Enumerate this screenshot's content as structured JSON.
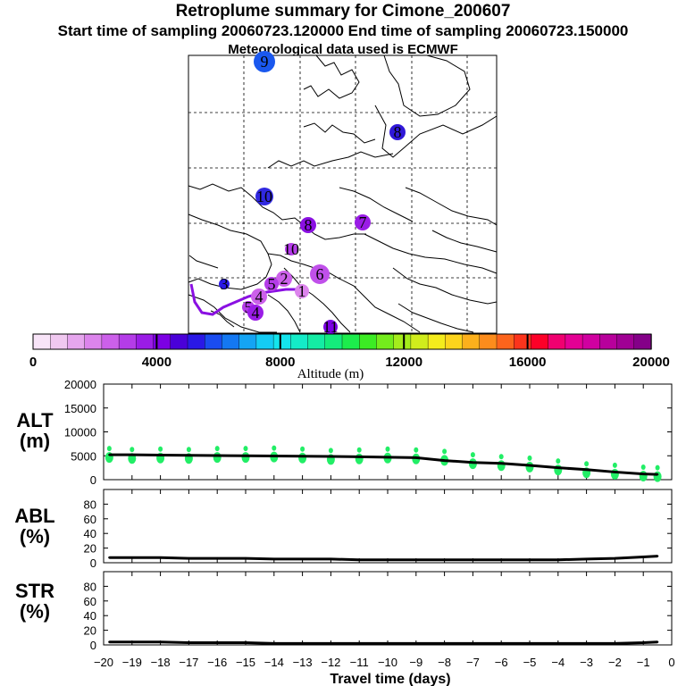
{
  "header": {
    "title": "Retroplume summary for Cimone_200607",
    "sampling": "Start time of sampling 20060723.120000     End time of sampling 20060723.150000",
    "met": "Meteorological data used is ECMWF"
  },
  "colorbar": {
    "label": "Altitude (m)",
    "ticks": [
      "0",
      "4000",
      "8000",
      "12000",
      "16000",
      "20000"
    ],
    "colors": [
      "#f8e4f8",
      "#f0c8f0",
      "#e6a6ee",
      "#dc84ec",
      "#cc60ea",
      "#b43ce8",
      "#9a1ce6",
      "#7c00e4",
      "#4a00d8",
      "#2a18e6",
      "#1a4cf0",
      "#1478f2",
      "#14a4f4",
      "#14ccf4",
      "#14e4ec",
      "#14ecc8",
      "#14eca4",
      "#14ec7c",
      "#1cec4c",
      "#3cec24",
      "#74ec1c",
      "#a4ec1c",
      "#d0ec1c",
      "#f4ec1c",
      "#fcd41c",
      "#fcb01c",
      "#fc8c1c",
      "#fc641c",
      "#fc341c",
      "#fc0028",
      "#f00070",
      "#e40094",
      "#d000a0",
      "#b8009c",
      "#a00094",
      "#840088"
    ]
  },
  "map_markers": [
    {
      "label": "9",
      "color": "#1a58ee"
    },
    {
      "label": "8",
      "color": "#3018d8"
    },
    {
      "label": "10",
      "color": "#3028e0"
    },
    {
      "label": "7",
      "color": "#9a1ce6"
    },
    {
      "label": "8",
      "color": "#8a10e2"
    },
    {
      "label": "10",
      "color": "#b43ce8"
    },
    {
      "label": "6",
      "color": "#c050ea"
    },
    {
      "label": "3",
      "color": "#2a18e6"
    },
    {
      "label": "4",
      "color": "#cc60ea"
    },
    {
      "label": "5",
      "color": "#b43ce8"
    },
    {
      "label": "1",
      "color": "#dc84ec"
    },
    {
      "label": "11",
      "color": "#7c00e4"
    },
    {
      "label": "2",
      "color": "#cc60ea"
    },
    {
      "label": "5",
      "color": "#b43ce8"
    },
    {
      "label": "4",
      "color": "#9a1ce6"
    }
  ],
  "chart_data": [
    {
      "type": "line",
      "panel": "ALT",
      "ylabel": "ALT (m)",
      "xlabel": "Travel time (days)",
      "ylim": [
        0,
        20000
      ],
      "yticks": [
        "0",
        "5000",
        "10000",
        "15000",
        "20000"
      ],
      "x": [
        -19.8,
        -19,
        -18,
        -17,
        -16,
        -15,
        -14,
        -13,
        -12,
        -11,
        -10,
        -9,
        -8,
        -7,
        -6,
        -5,
        -4,
        -3,
        -2,
        -1,
        -0.5
      ],
      "series": [
        {
          "name": "median altitude",
          "values": [
            5200,
            5200,
            5150,
            5100,
            5050,
            5000,
            4950,
            4900,
            4850,
            4800,
            4700,
            4600,
            4000,
            3600,
            3400,
            3000,
            2500,
            2100,
            1600,
            1200,
            1100
          ]
        }
      ],
      "scatter": {
        "name": "altitude spread",
        "color": "#22ee66",
        "x": [
          -19.8,
          -19,
          -18,
          -17,
          -16,
          -15,
          -14,
          -13,
          -12,
          -11,
          -10,
          -9,
          -8,
          -7,
          -6,
          -5,
          -4,
          -3,
          -2,
          -1,
          -0.5
        ],
        "y": [
          5200,
          5000,
          5100,
          5000,
          5200,
          5200,
          5300,
          5100,
          4800,
          4900,
          5100,
          4900,
          4600,
          3900,
          3500,
          3200,
          2600,
          2000,
          1700,
          1300,
          1200
        ]
      }
    },
    {
      "type": "line",
      "panel": "ABL",
      "ylabel": "ABL (%)",
      "ylim": [
        0,
        100
      ],
      "yticks": [
        "0",
        "20",
        "40",
        "60",
        "80"
      ],
      "x": [
        -19.8,
        -19,
        -18,
        -17,
        -16,
        -15,
        -14,
        -13,
        -12,
        -11,
        -10,
        -9,
        -8,
        -7,
        -6,
        -5,
        -4,
        -3,
        -2,
        -1,
        -0.5
      ],
      "series": [
        {
          "name": "ABL fraction",
          "values": [
            7,
            7,
            7,
            6,
            6,
            6,
            5,
            5,
            5,
            4,
            4,
            4,
            4,
            4,
            4,
            4,
            4,
            5,
            6,
            8,
            9
          ]
        }
      ]
    },
    {
      "type": "line",
      "panel": "STR",
      "ylabel": "STR (%)",
      "ylim": [
        0,
        100
      ],
      "yticks": [
        "0",
        "20",
        "40",
        "60",
        "80"
      ],
      "x": [
        -19.8,
        -19,
        -18,
        -17,
        -16,
        -15,
        -14,
        -13,
        -12,
        -11,
        -10,
        -9,
        -8,
        -7,
        -6,
        -5,
        -4,
        -3,
        -2,
        -1,
        -0.5
      ],
      "series": [
        {
          "name": "STR fraction",
          "values": [
            4,
            4,
            4,
            3,
            3,
            3,
            2,
            2,
            2,
            2,
            2,
            2,
            2,
            2,
            2,
            2,
            2,
            2,
            2,
            3,
            4
          ]
        }
      ]
    }
  ],
  "xaxis": {
    "ticks": [
      "−20",
      "−19",
      "−18",
      "−17",
      "−16",
      "−15",
      "−14",
      "−13",
      "−12",
      "−11",
      "−10",
      "−9",
      "−8",
      "−7",
      "−6",
      "−5",
      "−4",
      "−3",
      "−2",
      "−1",
      "0"
    ],
    "label": "Travel time (days)"
  },
  "panel_labels": {
    "alt": "ALT",
    "alt_unit": "(m)",
    "abl": "ABL",
    "abl_unit": "(%)",
    "str": "STR",
    "str_unit": "(%)"
  }
}
